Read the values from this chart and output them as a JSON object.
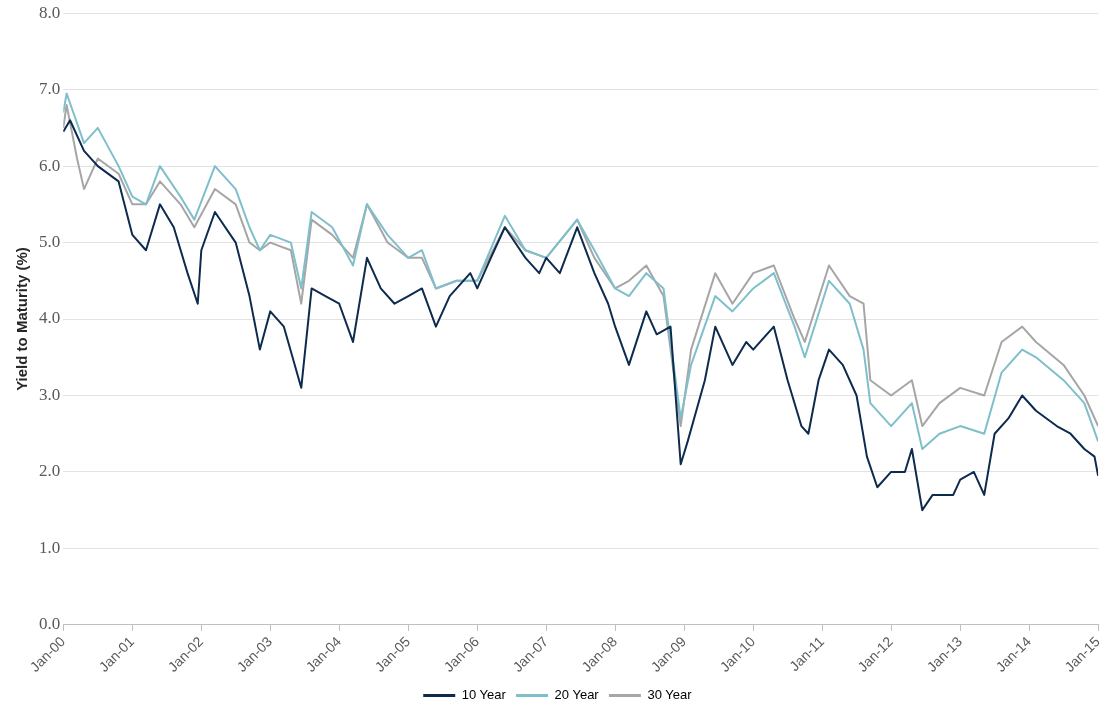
{
  "chart_data": {
    "type": "line",
    "ylabel": "Yield to Maturity (%)",
    "xlim": [
      "2000-01-01",
      "2015-01-01"
    ],
    "xticks": [
      {
        "value": "2000-01-01",
        "label": "Jan-00"
      },
      {
        "value": "2001-01-01",
        "label": "Jan-01"
      },
      {
        "value": "2002-01-01",
        "label": "Jan-02"
      },
      {
        "value": "2003-01-01",
        "label": "Jan-03"
      },
      {
        "value": "2004-01-01",
        "label": "Jan-04"
      },
      {
        "value": "2005-01-01",
        "label": "Jan-05"
      },
      {
        "value": "2006-01-01",
        "label": "Jan-06"
      },
      {
        "value": "2007-01-01",
        "label": "Jan-07"
      },
      {
        "value": "2008-01-01",
        "label": "Jan-08"
      },
      {
        "value": "2009-01-01",
        "label": "Jan-09"
      },
      {
        "value": "2010-01-01",
        "label": "Jan-10"
      },
      {
        "value": "2011-01-01",
        "label": "Jan-11"
      },
      {
        "value": "2012-01-01",
        "label": "Jan-12"
      },
      {
        "value": "2013-01-01",
        "label": "Jan-13"
      },
      {
        "value": "2014-01-01",
        "label": "Jan-14"
      },
      {
        "value": "2015-01-01",
        "label": "Jan-15"
      }
    ],
    "ylim": [
      0,
      8
    ],
    "yticks": [
      {
        "value": 0,
        "label": "0.0"
      },
      {
        "value": 1,
        "label": "1.0"
      },
      {
        "value": 2,
        "label": "2.0"
      },
      {
        "value": 3,
        "label": "3.0"
      },
      {
        "value": 4,
        "label": "4.0"
      },
      {
        "value": 5,
        "label": "5.0"
      },
      {
        "value": 6,
        "label": "6.0"
      },
      {
        "value": 7,
        "label": "7.0"
      },
      {
        "value": 8,
        "label": "8.0"
      }
    ],
    "grid": "y",
    "legend": "bottom",
    "marker": "none",
    "line_style": "solid",
    "series": [
      {
        "name": "10 Year",
        "color": "#0d2b4e",
        "x": [
          "2000-01-01",
          "2000-02-06",
          "2000-04-20",
          "2000-07-02",
          "2000-10-20",
          "2001-01-01",
          "2001-03-14",
          "2001-05-27",
          "2001-08-08",
          "2001-10-20",
          "2001-12-13",
          "2002-01-01",
          "2002-03-14",
          "2002-07-02",
          "2002-09-13",
          "2002-11-07",
          "2003-01-01",
          "2003-03-14",
          "2003-06-14",
          "2003-08-08",
          "2003-10-20",
          "2004-01-01",
          "2004-03-14",
          "2004-05-27",
          "2004-08-08",
          "2004-10-20",
          "2005-01-01",
          "2005-03-14",
          "2005-05-27",
          "2005-08-08",
          "2005-11-25",
          "2006-01-01",
          "2006-03-14",
          "2006-05-27",
          "2006-09-13",
          "2006-11-25",
          "2007-01-01",
          "2007-03-14",
          "2007-06-14",
          "2007-09-13",
          "2007-11-25",
          "2008-01-01",
          "2008-03-14",
          "2008-06-14",
          "2008-08-08",
          "2008-10-20",
          "2008-12-13",
          "2009-01-19",
          "2009-04-20",
          "2009-06-14",
          "2009-09-13",
          "2009-11-25",
          "2010-01-01",
          "2010-04-20",
          "2010-07-02",
          "2010-09-13",
          "2010-10-20",
          "2010-12-13",
          "2011-02-06",
          "2011-04-20",
          "2011-07-02",
          "2011-08-26",
          "2011-10-20",
          "2012-01-01",
          "2012-03-14",
          "2012-04-20",
          "2012-06-14",
          "2012-08-08",
          "2012-11-25",
          "2013-01-01",
          "2013-03-14",
          "2013-05-08",
          "2013-07-02",
          "2013-09-13",
          "2013-11-25",
          "2014-02-06",
          "2014-05-27",
          "2014-08-08",
          "2014-10-20",
          "2014-12-13",
          "2015-01-01"
        ],
        "values": [
          6.45,
          6.6,
          6.2,
          6.0,
          5.8,
          5.1,
          4.9,
          5.5,
          5.2,
          4.6,
          4.2,
          4.9,
          5.4,
          5.0,
          4.3,
          3.6,
          4.1,
          3.9,
          3.1,
          4.4,
          4.3,
          4.2,
          3.7,
          4.8,
          4.4,
          4.2,
          4.3,
          4.4,
          3.9,
          4.3,
          4.6,
          4.4,
          4.8,
          5.2,
          4.8,
          4.6,
          4.8,
          4.6,
          5.2,
          4.6,
          4.2,
          3.9,
          3.4,
          4.1,
          3.8,
          3.9,
          2.1,
          2.4,
          3.2,
          3.9,
          3.4,
          3.7,
          3.6,
          3.9,
          3.2,
          2.6,
          2.5,
          3.2,
          3.6,
          3.4,
          3.0,
          2.2,
          1.8,
          2.0,
          2.0,
          2.3,
          1.5,
          1.7,
          1.7,
          1.9,
          2.0,
          1.7,
          2.5,
          2.7,
          3.0,
          2.8,
          2.6,
          2.5,
          2.3,
          2.2,
          1.95
        ]
      },
      {
        "name": "20 Year",
        "color": "#7fbfcc",
        "x": [
          "2000-01-01",
          "2000-01-19",
          "2000-04-20",
          "2000-07-02",
          "2000-10-20",
          "2001-01-01",
          "2001-03-14",
          "2001-05-27",
          "2001-09-13",
          "2001-11-25",
          "2002-03-14",
          "2002-07-02",
          "2002-09-13",
          "2002-11-07",
          "2003-01-01",
          "2003-04-20",
          "2003-06-14",
          "2003-08-08",
          "2003-11-25",
          "2004-03-14",
          "2004-05-27",
          "2004-09-13",
          "2005-01-01",
          "2005-03-14",
          "2005-05-27",
          "2005-09-13",
          "2006-01-01",
          "2006-05-27",
          "2006-09-13",
          "2007-01-01",
          "2007-06-14",
          "2007-09-13",
          "2008-01-01",
          "2008-03-14",
          "2008-06-14",
          "2008-09-13",
          "2008-12-13",
          "2009-02-06",
          "2009-06-14",
          "2009-09-13",
          "2010-01-01",
          "2010-04-20",
          "2010-08-08",
          "2010-10-01",
          "2011-02-06",
          "2011-05-27",
          "2011-08-08",
          "2011-09-13",
          "2012-01-01",
          "2012-04-20",
          "2012-06-14",
          "2012-09-13",
          "2013-01-01",
          "2013-05-08",
          "2013-08-08",
          "2013-11-25",
          "2014-02-06",
          "2014-07-02",
          "2014-10-20",
          "2015-01-01"
        ],
        "values": [
          6.7,
          6.95,
          6.3,
          6.5,
          6.0,
          5.6,
          5.5,
          6.0,
          5.6,
          5.3,
          6.0,
          5.7,
          5.2,
          4.9,
          5.1,
          5.0,
          4.4,
          5.4,
          5.2,
          4.7,
          5.5,
          5.1,
          4.8,
          4.9,
          4.4,
          4.5,
          4.5,
          5.35,
          4.9,
          4.8,
          5.3,
          4.9,
          4.4,
          4.3,
          4.6,
          4.4,
          2.7,
          3.4,
          4.3,
          4.1,
          4.4,
          4.6,
          3.9,
          3.5,
          4.5,
          4.2,
          3.6,
          2.9,
          2.6,
          2.9,
          2.3,
          2.5,
          2.6,
          2.5,
          3.3,
          3.6,
          3.5,
          3.2,
          2.9,
          2.4
        ]
      },
      {
        "name": "30 Year",
        "color": "#a6a6a6",
        "x": [
          "2000-01-01",
          "2000-01-19",
          "2000-03-14",
          "2000-04-20",
          "2000-07-02",
          "2000-10-20",
          "2001-01-01",
          "2001-03-14",
          "2001-05-27",
          "2001-09-13",
          "2001-11-25",
          "2002-03-14",
          "2002-07-02",
          "2002-09-13",
          "2002-11-07",
          "2003-01-01",
          "2003-04-20",
          "2003-06-14",
          "2003-08-08",
          "2003-11-25",
          "2004-03-14",
          "2004-05-27",
          "2004-09-13",
          "2005-01-01",
          "2005-03-14",
          "2005-05-27",
          "2005-09-13",
          "2006-01-01",
          "2006-05-27",
          "2006-09-13",
          "2007-01-01",
          "2007-06-14",
          "2007-09-13",
          "2008-01-01",
          "2008-03-14",
          "2008-06-14",
          "2008-09-13",
          "2008-12-13",
          "2009-02-06",
          "2009-06-14",
          "2009-09-13",
          "2010-01-01",
          "2010-04-20",
          "2010-08-08",
          "2010-10-01",
          "2011-02-06",
          "2011-05-27",
          "2011-08-08",
          "2011-09-13",
          "2012-01-01",
          "2012-04-20",
          "2012-06-14",
          "2012-09-13",
          "2013-01-01",
          "2013-05-08",
          "2013-08-08",
          "2013-11-25",
          "2014-02-06",
          "2014-07-02",
          "2014-10-20",
          "2015-01-01"
        ],
        "values": [
          6.5,
          6.8,
          6.1,
          5.7,
          6.1,
          5.9,
          5.5,
          5.5,
          5.8,
          5.5,
          5.2,
          5.7,
          5.5,
          5.0,
          4.9,
          5.0,
          4.9,
          4.2,
          5.3,
          5.1,
          4.8,
          5.5,
          5.0,
          4.8,
          4.8,
          4.4,
          4.5,
          4.5,
          5.2,
          4.9,
          4.8,
          5.3,
          4.8,
          4.4,
          4.5,
          4.7,
          4.3,
          2.6,
          3.6,
          4.6,
          4.2,
          4.6,
          4.7,
          4.0,
          3.7,
          4.7,
          4.3,
          4.2,
          3.2,
          3.0,
          3.2,
          2.6,
          2.9,
          3.1,
          3.0,
          3.7,
          3.9,
          3.7,
          3.4,
          3.0,
          2.6
        ]
      }
    ]
  }
}
